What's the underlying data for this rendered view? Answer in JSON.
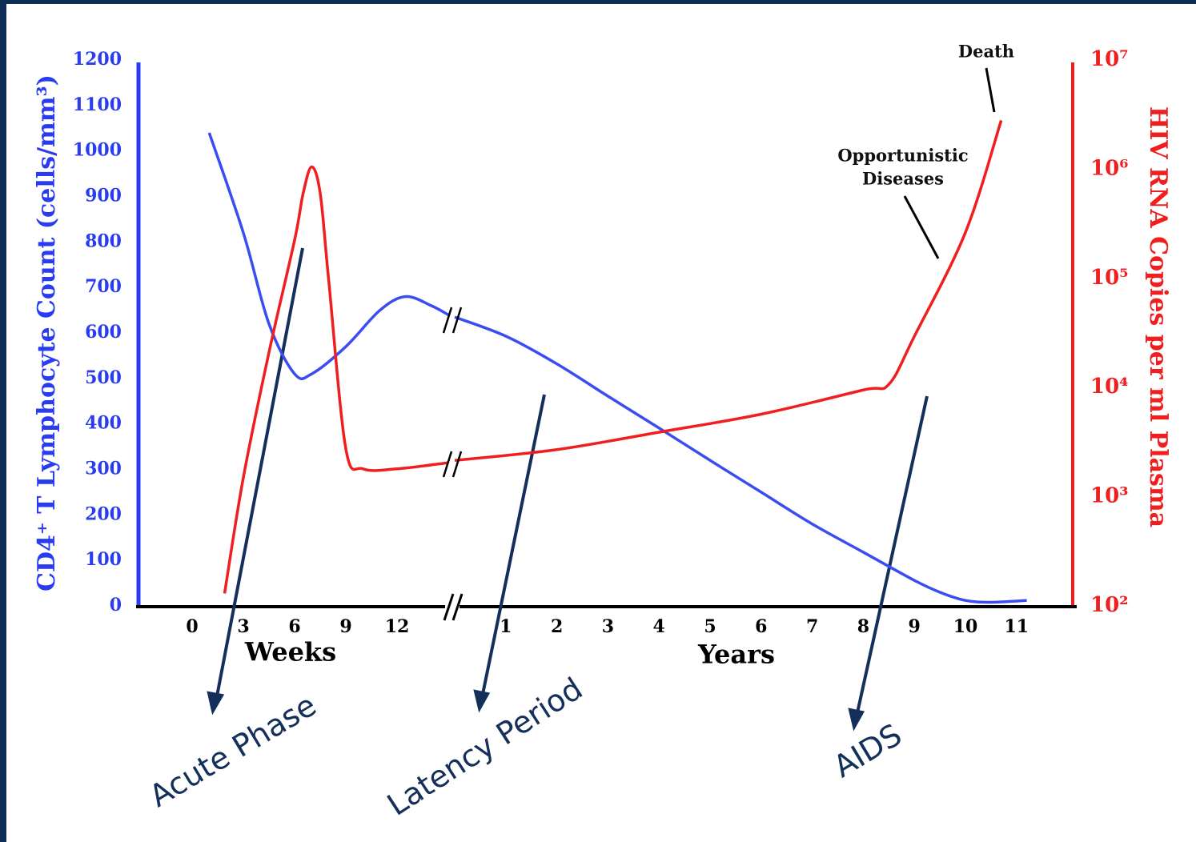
{
  "chart_data": {
    "type": "line",
    "y_label": "CD4⁺ T Lymphocyte Count (cells/mm³)",
    "y2_label": "HIV RNA Copies per ml Plasma",
    "ylim": [
      0,
      1200
    ],
    "yticks": [
      0,
      100,
      200,
      300,
      400,
      500,
      600,
      700,
      800,
      900,
      1000,
      1100,
      1200
    ],
    "y2lim": [
      100,
      10000000
    ],
    "y2log": true,
    "y2ticks": [
      {
        "value": 100,
        "label": "10²"
      },
      {
        "value": 1000,
        "label": "10³"
      },
      {
        "value": 10000,
        "label": "10⁴"
      },
      {
        "value": 100000,
        "label": "10⁵"
      },
      {
        "value": 1000000,
        "label": "10⁶"
      },
      {
        "value": 10000000,
        "label": "10⁷"
      }
    ],
    "segments": [
      {
        "xlabel": "Weeks",
        "xlim": [
          -3,
          15
        ],
        "xticks": [
          0,
          3,
          6,
          9,
          12
        ],
        "series": [
          {
            "color": "#3a4df0",
            "x": [
              1,
              3,
              4.5,
              6,
              7,
              9,
              11,
              12.5,
              14,
              15
            ],
            "values": [
              1040,
              820,
              620,
              510,
              510,
              570,
              650,
              680,
              660,
              640
            ]
          },
          {
            "color": "#f01e1e",
            "axis": "y2",
            "x": [
              1.9,
              3,
              4.5,
              6,
              6.5,
              7,
              7.5,
              8,
              9,
              10,
              12,
              15
            ],
            "values": [
              130,
              1500,
              21000,
              224000,
              600000,
              1050000,
              600000,
              95000,
              2750,
              1800,
              1800,
              2050
            ]
          }
        ]
      },
      {
        "xlabel": "Years",
        "xlim": [
          0,
          12.1
        ],
        "xticks": [
          1,
          2,
          3,
          4,
          5,
          6,
          7,
          8,
          9,
          10,
          11
        ],
        "series": [
          {
            "color": "#3a4df0",
            "x": [
              0,
              1,
              2,
              3,
              4,
              5,
              6,
              7,
              8,
              9,
              9.5,
              10,
              10.5,
              11.2
            ],
            "values": [
              635,
              593,
              532,
              461,
              391,
              320,
              250,
              180,
              118,
              56,
              30,
              12,
              8,
              12
            ]
          },
          {
            "color": "#f01e1e",
            "axis": "y2",
            "x": [
              0,
              2,
              4,
              6,
              8,
              8.5,
              9,
              10,
              10.7
            ],
            "values": [
              2150,
              2700,
              3900,
              5700,
              9500,
              10700,
              29500,
              264000,
              2800000
            ]
          }
        ]
      }
    ],
    "annotations": [
      {
        "lines": [
          "Death"
        ]
      },
      {
        "lines": [
          "Opportunistic",
          "Diseases"
        ]
      }
    ],
    "phases": [
      "Acute Phase",
      "Latency Period",
      "AIDS"
    ]
  }
}
